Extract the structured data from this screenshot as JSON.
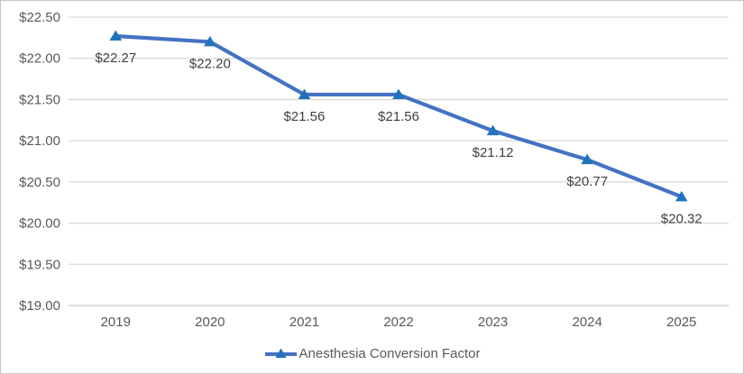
{
  "chart_data": {
    "type": "line",
    "categories": [
      "2019",
      "2020",
      "2021",
      "2022",
      "2023",
      "2024",
      "2025"
    ],
    "series": [
      {
        "name": "Anesthesia Conversion Factor",
        "values": [
          22.27,
          22.2,
          21.56,
          21.56,
          21.12,
          20.77,
          20.32
        ],
        "point_labels": [
          "$22.27",
          "$22.20",
          "$21.56",
          "$21.56",
          "$21.12",
          "$20.77",
          "$20.32"
        ],
        "line_color": "#4472C4",
        "marker_color": "#2073BC",
        "marker": "triangle"
      }
    ],
    "y_axis": {
      "min": 19.0,
      "max": 22.5,
      "ticks": [
        {
          "value": 22.5,
          "label": "$22.50"
        },
        {
          "value": 22.0,
          "label": "$22.00"
        },
        {
          "value": 21.5,
          "label": "$21.50"
        },
        {
          "value": 21.0,
          "label": "$21.00"
        },
        {
          "value": 20.5,
          "label": "$20.50"
        },
        {
          "value": 20.0,
          "label": "$20.00"
        },
        {
          "value": 19.5,
          "label": "$19.50"
        },
        {
          "value": 19.0,
          "label": "$19.00"
        }
      ]
    },
    "title": "",
    "grid": true,
    "legend_position": "bottom",
    "colors": {
      "gridline": "#D9D9D9",
      "axis_line": "#C6C6C6",
      "axis_text": "#595959",
      "data_label_text": "#404040",
      "background": "#FFFFFF",
      "border": "#C6C6C6"
    }
  }
}
